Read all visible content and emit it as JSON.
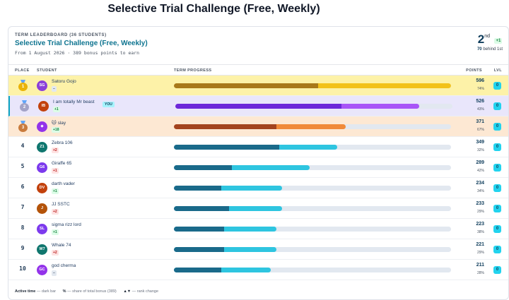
{
  "page_title": "Selective Trial Challenge (Free, Weekly)",
  "header": {
    "kicker": "TERM LEADERBOARD (36 STUDENTS)",
    "title": "Selective Trial Challenge (Free, Weekly)",
    "subline": "From 1 August 2026 · 389 bonus points to earn",
    "rank_number": "2",
    "rank_suffix": "nd",
    "rank_delta": "+1",
    "behind_value": "70",
    "behind_label": "behind 1st"
  },
  "columns": {
    "place": "PLACE",
    "student": "STUDENT",
    "progress": "TERM PROGRESS",
    "points": "POINTS",
    "lvl": "LVL"
  },
  "colors": {
    "gold_row": "#fdf2a8",
    "silver_row": "#e9e6fb",
    "bronze_row": "#fde8d3",
    "accent": "#0ea5c4",
    "teal_dark": "#1a6a8a",
    "teal_light": "#2ec5e0"
  },
  "rows": [
    {
      "place": "1",
      "initials": "SG",
      "name": "Satoru Gojo",
      "change": "–",
      "change_dir": "same",
      "points": "596",
      "pct": "74%",
      "active": 0.52,
      "total": 1.0,
      "avatar_color": "#8b3fd9",
      "dark": "#a8791a",
      "light": "#f2c21b",
      "lvl": "0",
      "you": ""
    },
    {
      "place": "2",
      "initials": "IB",
      "name": "I am totally Mr beast",
      "change": "+1",
      "change_dir": "up",
      "points": "526",
      "pct": "43%",
      "active": 0.6,
      "total": 0.88,
      "avatar_color": "#c2410c",
      "dark": "#6d28d9",
      "light": "#a855f7",
      "lvl": "0",
      "you": "YOU"
    },
    {
      "place": "3",
      "initials": "◆",
      "name": "🐱 slay",
      "change": "+18",
      "change_dir": "up",
      "points": "371",
      "pct": "67%",
      "active": 0.37,
      "total": 0.62,
      "avatar_color": "#9333ea",
      "dark": "#a3431e",
      "light": "#f08a3a",
      "lvl": "0",
      "you": ""
    },
    {
      "place": "4",
      "initials": "Z1",
      "name": "Zebra 106",
      "change": "+2",
      "change_dir": "down",
      "points": "349",
      "pct": "32%",
      "active": 0.38,
      "total": 0.59,
      "avatar_color": "#0f766e",
      "dark": "#1a6a8a",
      "light": "#2ec5e0",
      "lvl": "0",
      "you": ""
    },
    {
      "place": "5",
      "initials": "G6",
      "name": "Giraffe 65",
      "change": "+1",
      "change_dir": "down",
      "points": "289",
      "pct": "42%",
      "active": 0.21,
      "total": 0.49,
      "avatar_color": "#7c3aed",
      "dark": "#1a6a8a",
      "light": "#2ec5e0",
      "lvl": "0",
      "you": ""
    },
    {
      "place": "6",
      "initials": "DV",
      "name": "darth vader",
      "change": "+1",
      "change_dir": "up",
      "points": "234",
      "pct": "34%",
      "active": 0.17,
      "total": 0.39,
      "avatar_color": "#c2410c",
      "dark": "#1a6a8a",
      "light": "#2ec5e0",
      "lvl": "0",
      "you": ""
    },
    {
      "place": "7",
      "initials": "J",
      "name": "JJ SSTC",
      "change": "+2",
      "change_dir": "down",
      "points": "233",
      "pct": "29%",
      "active": 0.2,
      "total": 0.39,
      "avatar_color": "#b45309",
      "dark": "#1a6a8a",
      "light": "#2ec5e0",
      "lvl": "0",
      "you": ""
    },
    {
      "place": "8",
      "initials": "SL",
      "name": "sigma rizz lord",
      "change": "+1",
      "change_dir": "up",
      "points": "223",
      "pct": "38%",
      "active": 0.18,
      "total": 0.37,
      "avatar_color": "#7c3aed",
      "dark": "#1a6a8a",
      "light": "#2ec5e0",
      "lvl": "0",
      "you": ""
    },
    {
      "place": "9",
      "initials": "W7",
      "name": "Whale 74",
      "change": "+2",
      "change_dir": "down",
      "points": "221",
      "pct": "29%",
      "active": 0.18,
      "total": 0.37,
      "avatar_color": "#0f766e",
      "dark": "#1a6a8a",
      "light": "#2ec5e0",
      "lvl": "0",
      "you": ""
    },
    {
      "place": "10",
      "initials": "GC",
      "name": "god cherma",
      "change": "–",
      "change_dir": "same",
      "points": "211",
      "pct": "28%",
      "active": 0.17,
      "total": 0.35,
      "avatar_color": "#9333ea",
      "dark": "#1a6a8a",
      "light": "#2ec5e0",
      "lvl": "0",
      "you": ""
    }
  ],
  "legend": {
    "active_label": "Active time",
    "active_desc": "— dark bar",
    "pct_label": "%",
    "pct_desc": "— share of total bonus (389)",
    "arrows_label": "▲▼",
    "arrows_desc": "— rank change"
  }
}
